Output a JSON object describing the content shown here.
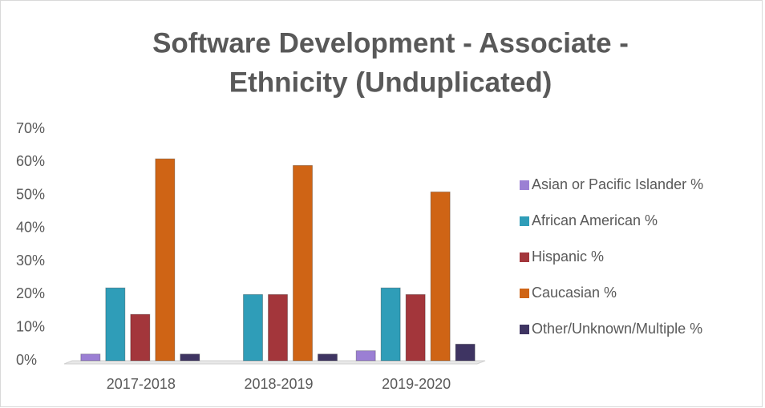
{
  "chart_data": {
    "type": "bar",
    "title": [
      "Software Development - Associate -",
      "Ethnicity (Unduplicated)"
    ],
    "categories": [
      "2017-2018",
      "2018-2019",
      "2019-2020"
    ],
    "series": [
      {
        "name": "Asian or Pacific Islander %",
        "color": "#9b7fd4",
        "values": [
          2,
          0,
          3
        ]
      },
      {
        "name": "African American %",
        "color": "#2f9db8",
        "values": [
          22,
          20,
          22
        ]
      },
      {
        "name": "Hispanic %",
        "color": "#a3363b",
        "values": [
          14,
          20,
          20
        ]
      },
      {
        "name": "Caucasian %",
        "color": "#cf6415",
        "values": [
          61,
          59,
          51
        ]
      },
      {
        "name": "Other/Unknown/Multiple %",
        "color": "#3e3462",
        "values": [
          2,
          2,
          5
        ]
      }
    ],
    "ylim": [
      0,
      70
    ],
    "yticks": [
      {
        "value": 0,
        "label": "0%"
      },
      {
        "value": 10,
        "label": "10%"
      },
      {
        "value": 20,
        "label": "20%"
      },
      {
        "value": 30,
        "label": "30%"
      },
      {
        "value": 40,
        "label": "40%"
      },
      {
        "value": 50,
        "label": "50%"
      },
      {
        "value": 60,
        "label": "60%"
      },
      {
        "value": 70,
        "label": "70%"
      }
    ],
    "grid": false,
    "legend": "right"
  }
}
